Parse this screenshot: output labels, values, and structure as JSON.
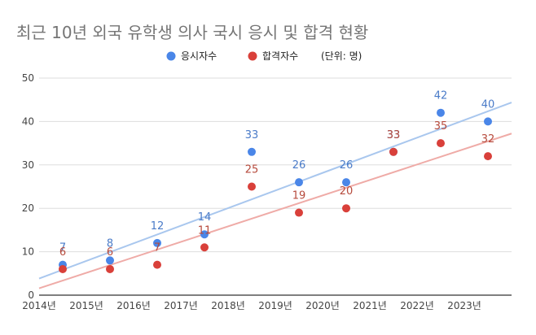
{
  "chart_data": {
    "type": "scatter",
    "title": "최근 10년 외국 유학생 의사 국시 응시 및 합격 현황",
    "xlabel": "",
    "ylabel": "",
    "x_ticks": [
      "2014년",
      "2015년",
      "2016년",
      "2017년",
      "2018년",
      "2019년",
      "2020년",
      "2021년",
      "2022년",
      "2023년"
    ],
    "xlim": [
      "2014",
      "2024"
    ],
    "ylim": [
      0,
      50
    ],
    "y_ticks": [
      0,
      10,
      20,
      30,
      40,
      50
    ],
    "grid": true,
    "legend": "top",
    "series": [
      {
        "name": "응시자수",
        "color": "#4a86e8",
        "trendline_color": "#a9c7ee",
        "label_color": "#4a7bc8",
        "x": [
          "2014.5",
          "2015.5",
          "2016.5",
          "2017.5",
          "2018.5",
          "2019.5",
          "2020.5",
          "2021.5",
          "2022.5",
          "2023.5"
        ],
        "values": [
          7,
          8,
          12,
          14,
          33,
          26,
          26,
          33,
          42,
          40
        ],
        "labels": [
          "7",
          "8",
          "12",
          "14",
          "33",
          "26",
          "26",
          "33",
          "42",
          "40"
        ]
      },
      {
        "name": "합격자수",
        "color": "#d9403a",
        "trendline_color": "#efaba7",
        "label_color": "#b64a3c",
        "x": [
          "2014.5",
          "2015.5",
          "2016.5",
          "2017.5",
          "2018.5",
          "2019.5",
          "2020.5",
          "2021.5",
          "2022.5",
          "2023.5"
        ],
        "values": [
          6,
          6,
          7,
          11,
          25,
          19,
          20,
          33,
          35,
          32
        ],
        "labels": [
          "6",
          "6",
          "7",
          "11",
          "25",
          "19",
          "20",
          "33",
          "35",
          "32"
        ]
      }
    ],
    "legend_note": "(단위: 명)",
    "colors": {
      "axis_text": "#444444",
      "grid": "#dddddd",
      "baseline": "#333333",
      "title": "#757575"
    }
  }
}
